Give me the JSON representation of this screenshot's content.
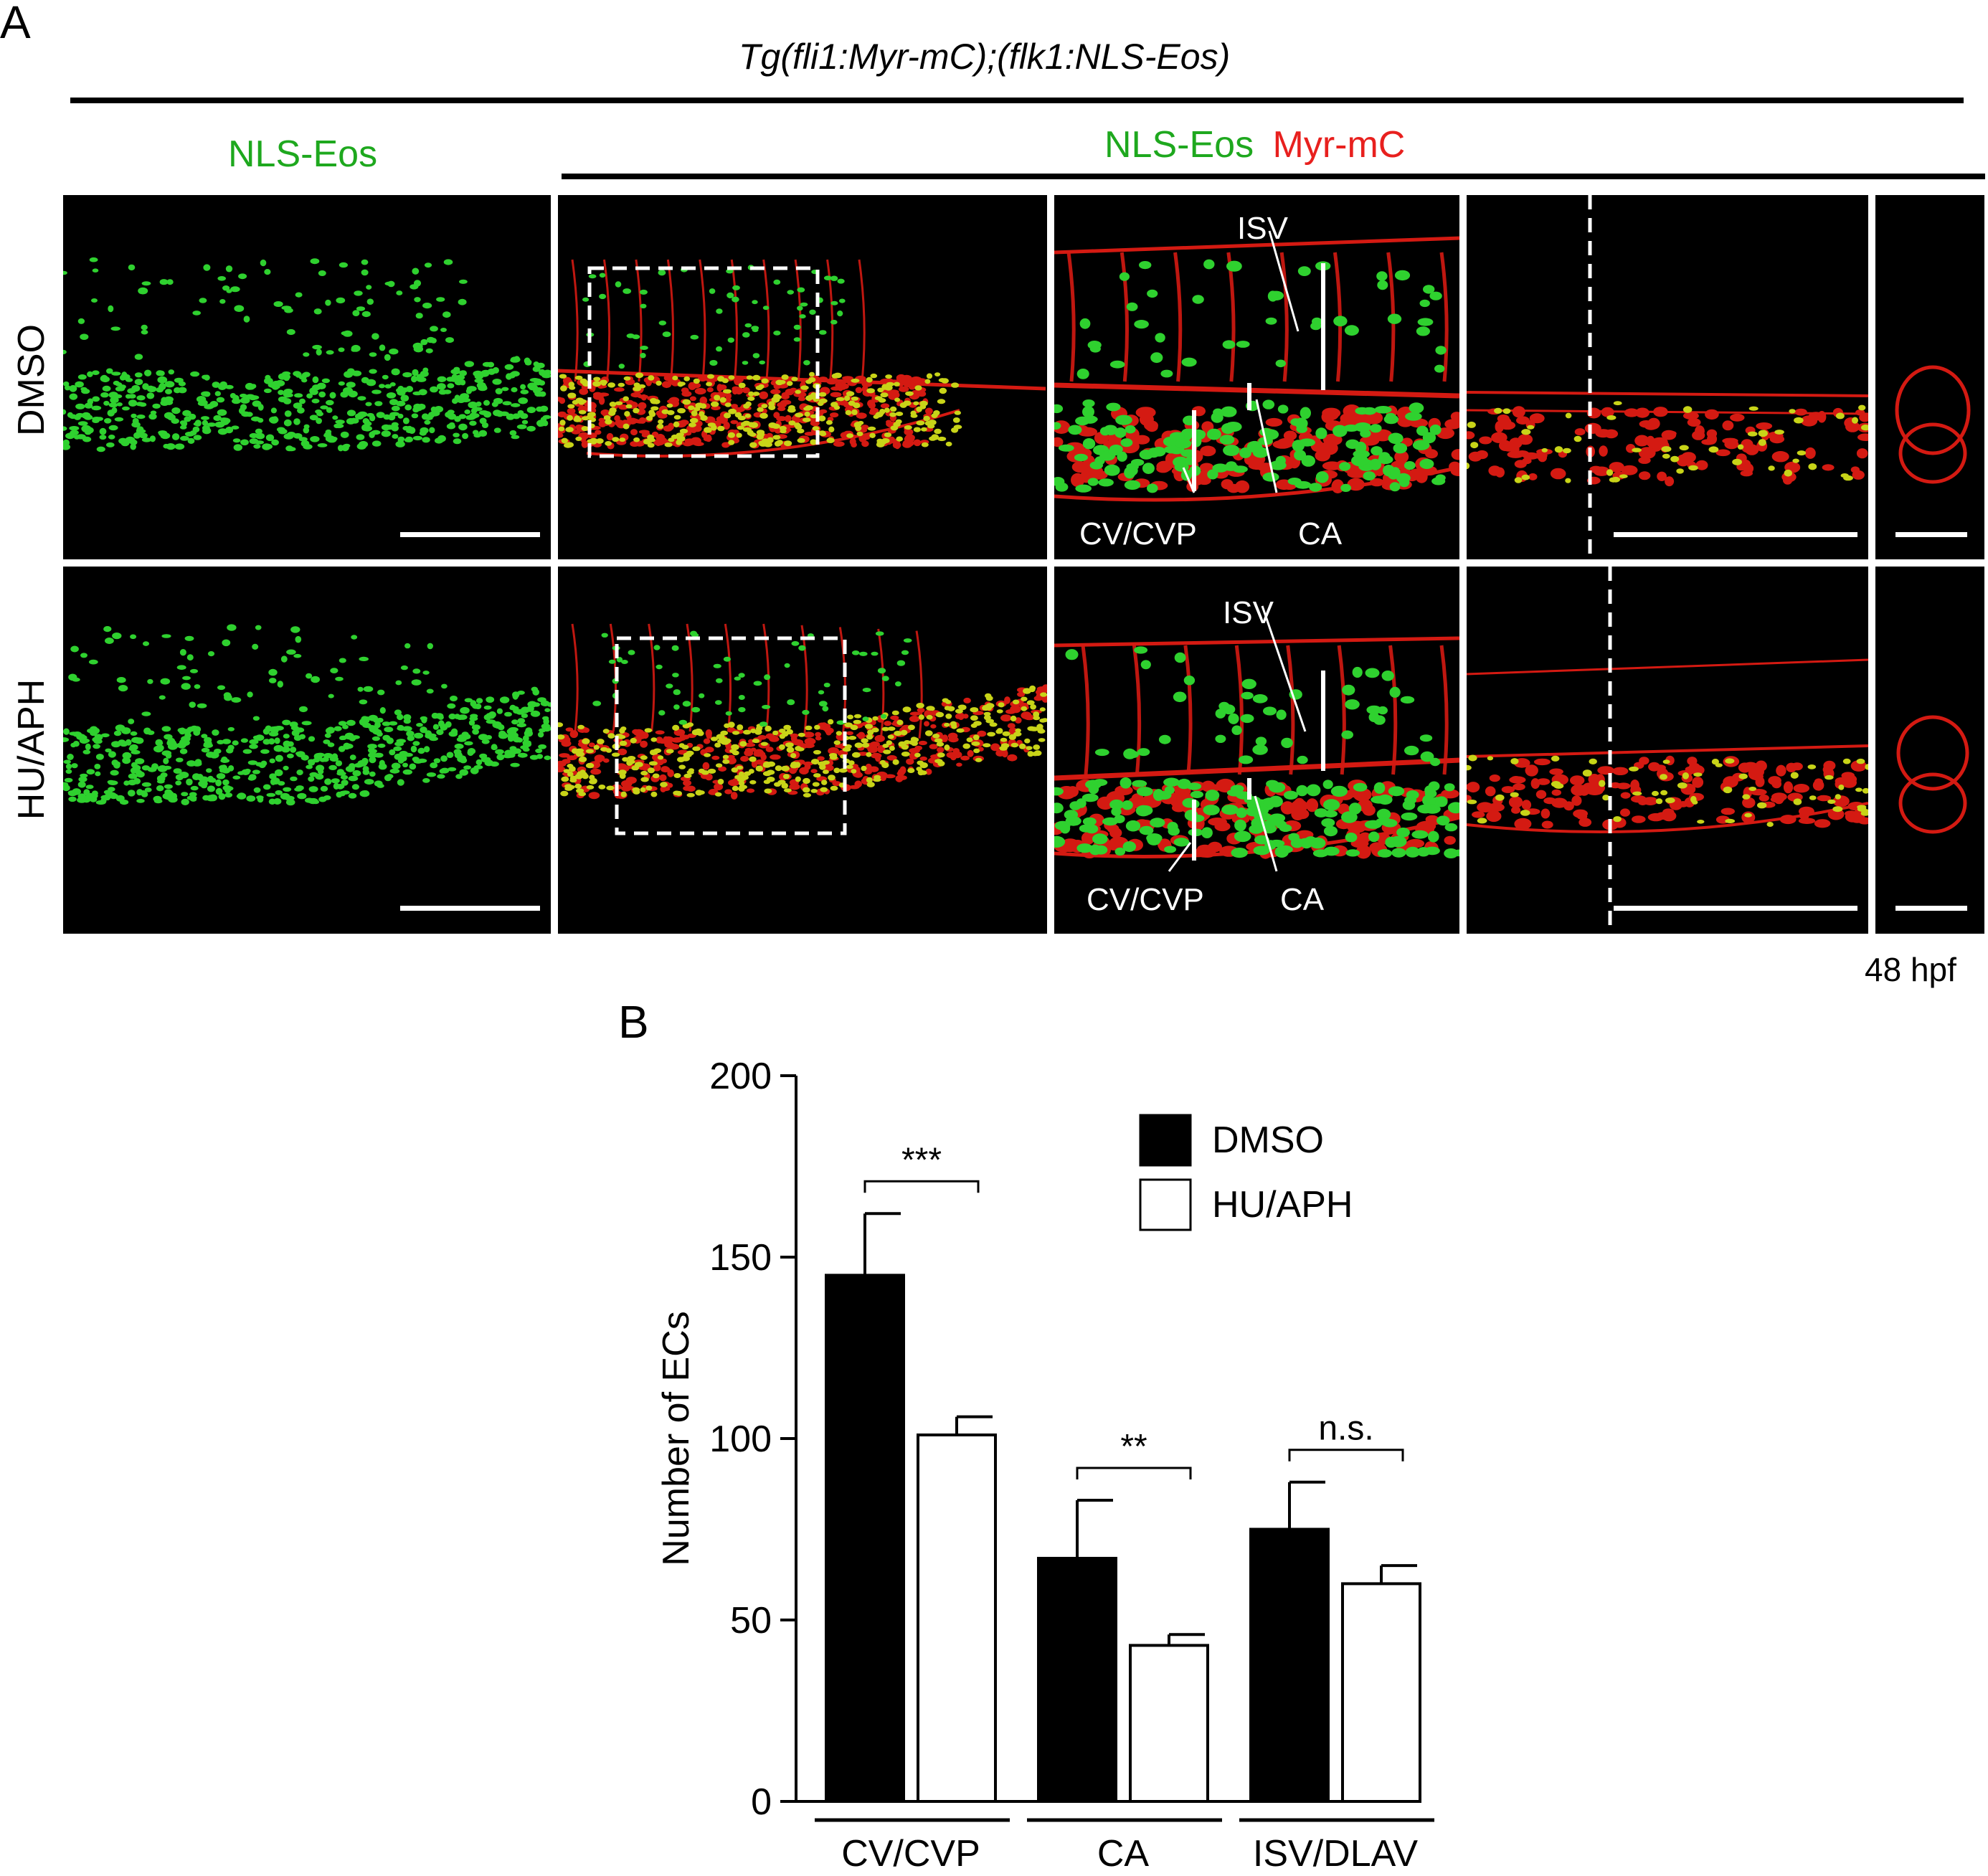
{
  "panel_a": {
    "letter": "A",
    "header": "Tg(fli1:Myr-mC);(flk1:NLS-Eos)",
    "col1_label": "NLS-Eos",
    "merge_label_green": "NLS-Eos",
    "merge_label_red": "Myr-mC",
    "row_labels": [
      "DMSO",
      "HU/APH"
    ],
    "vessel_labels": {
      "isv": "ISV",
      "cv": "CV/CVP",
      "ca": "CA"
    },
    "timepoint": "48 hpf",
    "colors": {
      "green": "#1ea81e",
      "red": "#e8201e"
    }
  },
  "panel_b": {
    "letter": "B",
    "chart_data": {
      "type": "bar",
      "categories": [
        "CV/CVP",
        "CA",
        "ISV/DLAV"
      ],
      "series": [
        {
          "name": "DMSO",
          "values": [
            145,
            67,
            75
          ],
          "errors": [
            17,
            16,
            13
          ],
          "color": "#000000"
        },
        {
          "name": "HU/APH",
          "values": [
            101,
            43,
            60
          ],
          "errors": [
            5,
            3,
            5
          ],
          "color": "#ffffff"
        }
      ],
      "ylabel": "Number of ECs",
      "ylim": [
        0,
        200
      ],
      "yticks": [
        0,
        50,
        100,
        150,
        200
      ],
      "significance": [
        "***",
        "**",
        "n.s."
      ],
      "legend_position": "top-right",
      "grid": false
    }
  }
}
